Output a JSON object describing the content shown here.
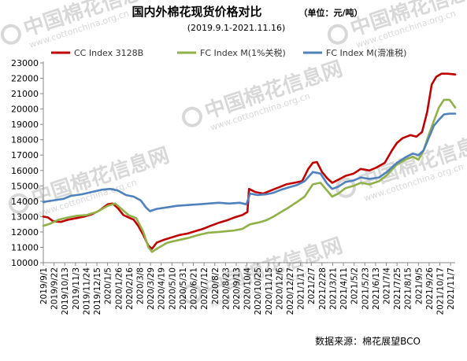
{
  "chart_data": {
    "type": "line",
    "title": "国内外棉花现货价格对比",
    "unit": "（单位：元/吨）",
    "subtitle": "(2019.9.1-2021.11.16)",
    "source": "数据来源：棉花展望BCO",
    "watermark": {
      "cn": "中国棉花信息网",
      "url": "www.cottonchina.org.cn"
    },
    "grid": false,
    "legend_position": "top",
    "ylim": [
      10000,
      23000
    ],
    "yticks": [
      "10000",
      "11000",
      "12000",
      "13000",
      "14000",
      "15000",
      "16000",
      "17000",
      "18000",
      "19000",
      "20000",
      "21000",
      "22000",
      "23000"
    ],
    "xlim": [
      "2019-09-01",
      "2021-11-16"
    ],
    "xticks": [
      "2019/9/1",
      "2019/9/22",
      "2019/10/13",
      "2019/11/3",
      "2019/11/24",
      "2019/12/15",
      "2020/1/5",
      "2020/1/26",
      "2020/2/16",
      "2020/3/8",
      "2020/3/29",
      "2020/4/19",
      "2020/5/10",
      "2020/5/31",
      "2020/6/21",
      "2020/7/12",
      "2020/8/2",
      "2020/8/23",
      "2020/9/13",
      "2020/10/4",
      "2020/10/25",
      "2020/11/15",
      "2020/12/6",
      "2020/12/27",
      "2021/1/17",
      "2021/2/7",
      "2021/2/28",
      "2021/3/21",
      "2021/4/11",
      "2021/5/2",
      "2021/5/23",
      "2021/6/13",
      "2021/7/4",
      "2021/7/25",
      "2021/8/15",
      "2021/9/5",
      "2021/9/26",
      "2021/10/17",
      "2021/11/7"
    ],
    "series": [
      {
        "name": "CC Index 3128B",
        "color": "#c00000",
        "points": [
          [
            "2019-09-01",
            13000
          ],
          [
            "2019-09-10",
            12950
          ],
          [
            "2019-09-20",
            12700
          ],
          [
            "2019-10-05",
            12650
          ],
          [
            "2019-10-20",
            12800
          ],
          [
            "2019-11-05",
            12900
          ],
          [
            "2019-11-20",
            13000
          ],
          [
            "2019-12-05",
            13150
          ],
          [
            "2019-12-20",
            13400
          ],
          [
            "2020-01-05",
            13800
          ],
          [
            "2020-01-15",
            13850
          ],
          [
            "2020-01-25",
            13550
          ],
          [
            "2020-02-05",
            13100
          ],
          [
            "2020-02-15",
            12950
          ],
          [
            "2020-02-25",
            12800
          ],
          [
            "2020-03-05",
            12400
          ],
          [
            "2020-03-15",
            11800
          ],
          [
            "2020-03-25",
            11100
          ],
          [
            "2020-04-01",
            10900
          ],
          [
            "2020-04-10",
            11300
          ],
          [
            "2020-04-25",
            11500
          ],
          [
            "2020-05-10",
            11650
          ],
          [
            "2020-05-25",
            11800
          ],
          [
            "2020-06-10",
            11900
          ],
          [
            "2020-06-25",
            12050
          ],
          [
            "2020-07-10",
            12200
          ],
          [
            "2020-07-25",
            12400
          ],
          [
            "2020-08-10",
            12600
          ],
          [
            "2020-08-25",
            12750
          ],
          [
            "2020-09-10",
            12950
          ],
          [
            "2020-09-25",
            13100
          ],
          [
            "2020-10-05",
            13300
          ],
          [
            "2020-10-08",
            14800
          ],
          [
            "2020-10-20",
            14600
          ],
          [
            "2020-11-05",
            14500
          ],
          [
            "2020-11-20",
            14700
          ],
          [
            "2020-12-05",
            14900
          ],
          [
            "2020-12-20",
            15100
          ],
          [
            "2021-01-05",
            15200
          ],
          [
            "2021-01-20",
            15300
          ],
          [
            "2021-02-01",
            16100
          ],
          [
            "2021-02-10",
            16500
          ],
          [
            "2021-02-18",
            16550
          ],
          [
            "2021-02-28",
            15900
          ],
          [
            "2021-03-10",
            15500
          ],
          [
            "2021-03-20",
            15200
          ],
          [
            "2021-04-01",
            15400
          ],
          [
            "2021-04-15",
            15650
          ],
          [
            "2021-05-01",
            15800
          ],
          [
            "2021-05-15",
            16100
          ],
          [
            "2021-06-01",
            16000
          ],
          [
            "2021-06-15",
            16200
          ],
          [
            "2021-07-01",
            16500
          ],
          [
            "2021-07-15",
            17300
          ],
          [
            "2021-07-25",
            17800
          ],
          [
            "2021-08-05",
            18100
          ],
          [
            "2021-08-20",
            18300
          ],
          [
            "2021-09-01",
            18200
          ],
          [
            "2021-09-12",
            18500
          ],
          [
            "2021-09-22",
            19800
          ],
          [
            "2021-10-01",
            21600
          ],
          [
            "2021-10-10",
            22100
          ],
          [
            "2021-10-20",
            22300
          ],
          [
            "2021-11-01",
            22300
          ],
          [
            "2021-11-16",
            22250
          ]
        ]
      },
      {
        "name": "FC Index M(1%关税)",
        "color": "#8fb148",
        "points": [
          [
            "2019-09-01",
            12400
          ],
          [
            "2019-09-15",
            12550
          ],
          [
            "2019-10-01",
            12800
          ],
          [
            "2019-10-20",
            12950
          ],
          [
            "2019-11-05",
            13050
          ],
          [
            "2019-11-25",
            13100
          ],
          [
            "2019-12-15",
            13300
          ],
          [
            "2020-01-05",
            13700
          ],
          [
            "2020-01-20",
            13850
          ],
          [
            "2020-02-01",
            13500
          ],
          [
            "2020-02-15",
            13100
          ],
          [
            "2020-03-01",
            12900
          ],
          [
            "2020-03-15",
            12000
          ],
          [
            "2020-03-25",
            11000
          ],
          [
            "2020-04-01",
            10700
          ],
          [
            "2020-04-15",
            11000
          ],
          [
            "2020-05-01",
            11300
          ],
          [
            "2020-05-20",
            11450
          ],
          [
            "2020-06-10",
            11600
          ],
          [
            "2020-07-01",
            11800
          ],
          [
            "2020-07-20",
            11950
          ],
          [
            "2020-08-10",
            12000
          ],
          [
            "2020-08-25",
            12050
          ],
          [
            "2020-09-10",
            12100
          ],
          [
            "2020-09-25",
            12200
          ],
          [
            "2020-10-10",
            12500
          ],
          [
            "2020-10-25",
            12600
          ],
          [
            "2020-11-10",
            12750
          ],
          [
            "2020-11-25",
            13000
          ],
          [
            "2020-12-10",
            13300
          ],
          [
            "2020-12-25",
            13600
          ],
          [
            "2021-01-10",
            13950
          ],
          [
            "2021-01-25",
            14300
          ],
          [
            "2021-02-10",
            15100
          ],
          [
            "2021-02-25",
            15200
          ],
          [
            "2021-03-10",
            14700
          ],
          [
            "2021-03-20",
            14300
          ],
          [
            "2021-04-01",
            14500
          ],
          [
            "2021-04-15",
            14850
          ],
          [
            "2021-05-01",
            15000
          ],
          [
            "2021-05-15",
            15200
          ],
          [
            "2021-06-01",
            15100
          ],
          [
            "2021-06-20",
            15300
          ],
          [
            "2021-07-05",
            15700
          ],
          [
            "2021-07-25",
            16400
          ],
          [
            "2021-08-10",
            16700
          ],
          [
            "2021-08-25",
            16900
          ],
          [
            "2021-09-05",
            16700
          ],
          [
            "2021-09-15",
            17300
          ],
          [
            "2021-09-25",
            18300
          ],
          [
            "2021-10-05",
            19200
          ],
          [
            "2021-10-15",
            20100
          ],
          [
            "2021-10-25",
            20600
          ],
          [
            "2021-11-05",
            20600
          ],
          [
            "2021-11-16",
            20100
          ]
        ]
      },
      {
        "name": "FC Index M(滑准税)",
        "color": "#4f81bd",
        "points": [
          [
            "2019-09-01",
            13950
          ],
          [
            "2019-09-20",
            14050
          ],
          [
            "2019-10-10",
            14150
          ],
          [
            "2019-10-25",
            14350
          ],
          [
            "2019-11-15",
            14450
          ],
          [
            "2019-12-05",
            14600
          ],
          [
            "2019-12-25",
            14750
          ],
          [
            "2020-01-10",
            14800
          ],
          [
            "2020-01-25",
            14700
          ],
          [
            "2020-02-10",
            14400
          ],
          [
            "2020-02-25",
            14300
          ],
          [
            "2020-03-10",
            14050
          ],
          [
            "2020-03-20",
            13600
          ],
          [
            "2020-03-28",
            13350
          ],
          [
            "2020-04-10",
            13500
          ],
          [
            "2020-04-30",
            13600
          ],
          [
            "2020-05-20",
            13700
          ],
          [
            "2020-06-10",
            13750
          ],
          [
            "2020-07-01",
            13800
          ],
          [
            "2020-07-20",
            13850
          ],
          [
            "2020-08-10",
            13900
          ],
          [
            "2020-08-30",
            13850
          ],
          [
            "2020-09-20",
            13900
          ],
          [
            "2020-10-03",
            13800
          ],
          [
            "2020-10-10",
            14500
          ],
          [
            "2020-10-25",
            14400
          ],
          [
            "2020-11-10",
            14450
          ],
          [
            "2020-11-25",
            14550
          ],
          [
            "2020-12-10",
            14750
          ],
          [
            "2020-12-25",
            14900
          ],
          [
            "2021-01-10",
            15050
          ],
          [
            "2021-01-25",
            15300
          ],
          [
            "2021-02-10",
            15900
          ],
          [
            "2021-02-25",
            15800
          ],
          [
            "2021-03-10",
            15150
          ],
          [
            "2021-03-20",
            14800
          ],
          [
            "2021-04-01",
            14950
          ],
          [
            "2021-04-15",
            15250
          ],
          [
            "2021-05-01",
            15350
          ],
          [
            "2021-05-15",
            15550
          ],
          [
            "2021-06-01",
            15450
          ],
          [
            "2021-06-20",
            15550
          ],
          [
            "2021-07-05",
            15900
          ],
          [
            "2021-07-25",
            16500
          ],
          [
            "2021-08-10",
            16850
          ],
          [
            "2021-08-25",
            17100
          ],
          [
            "2021-09-05",
            17000
          ],
          [
            "2021-09-15",
            17300
          ],
          [
            "2021-09-25",
            18100
          ],
          [
            "2021-10-05",
            18900
          ],
          [
            "2021-10-15",
            19300
          ],
          [
            "2021-10-25",
            19650
          ],
          [
            "2021-11-05",
            19700
          ],
          [
            "2021-11-16",
            19700
          ]
        ]
      }
    ]
  }
}
